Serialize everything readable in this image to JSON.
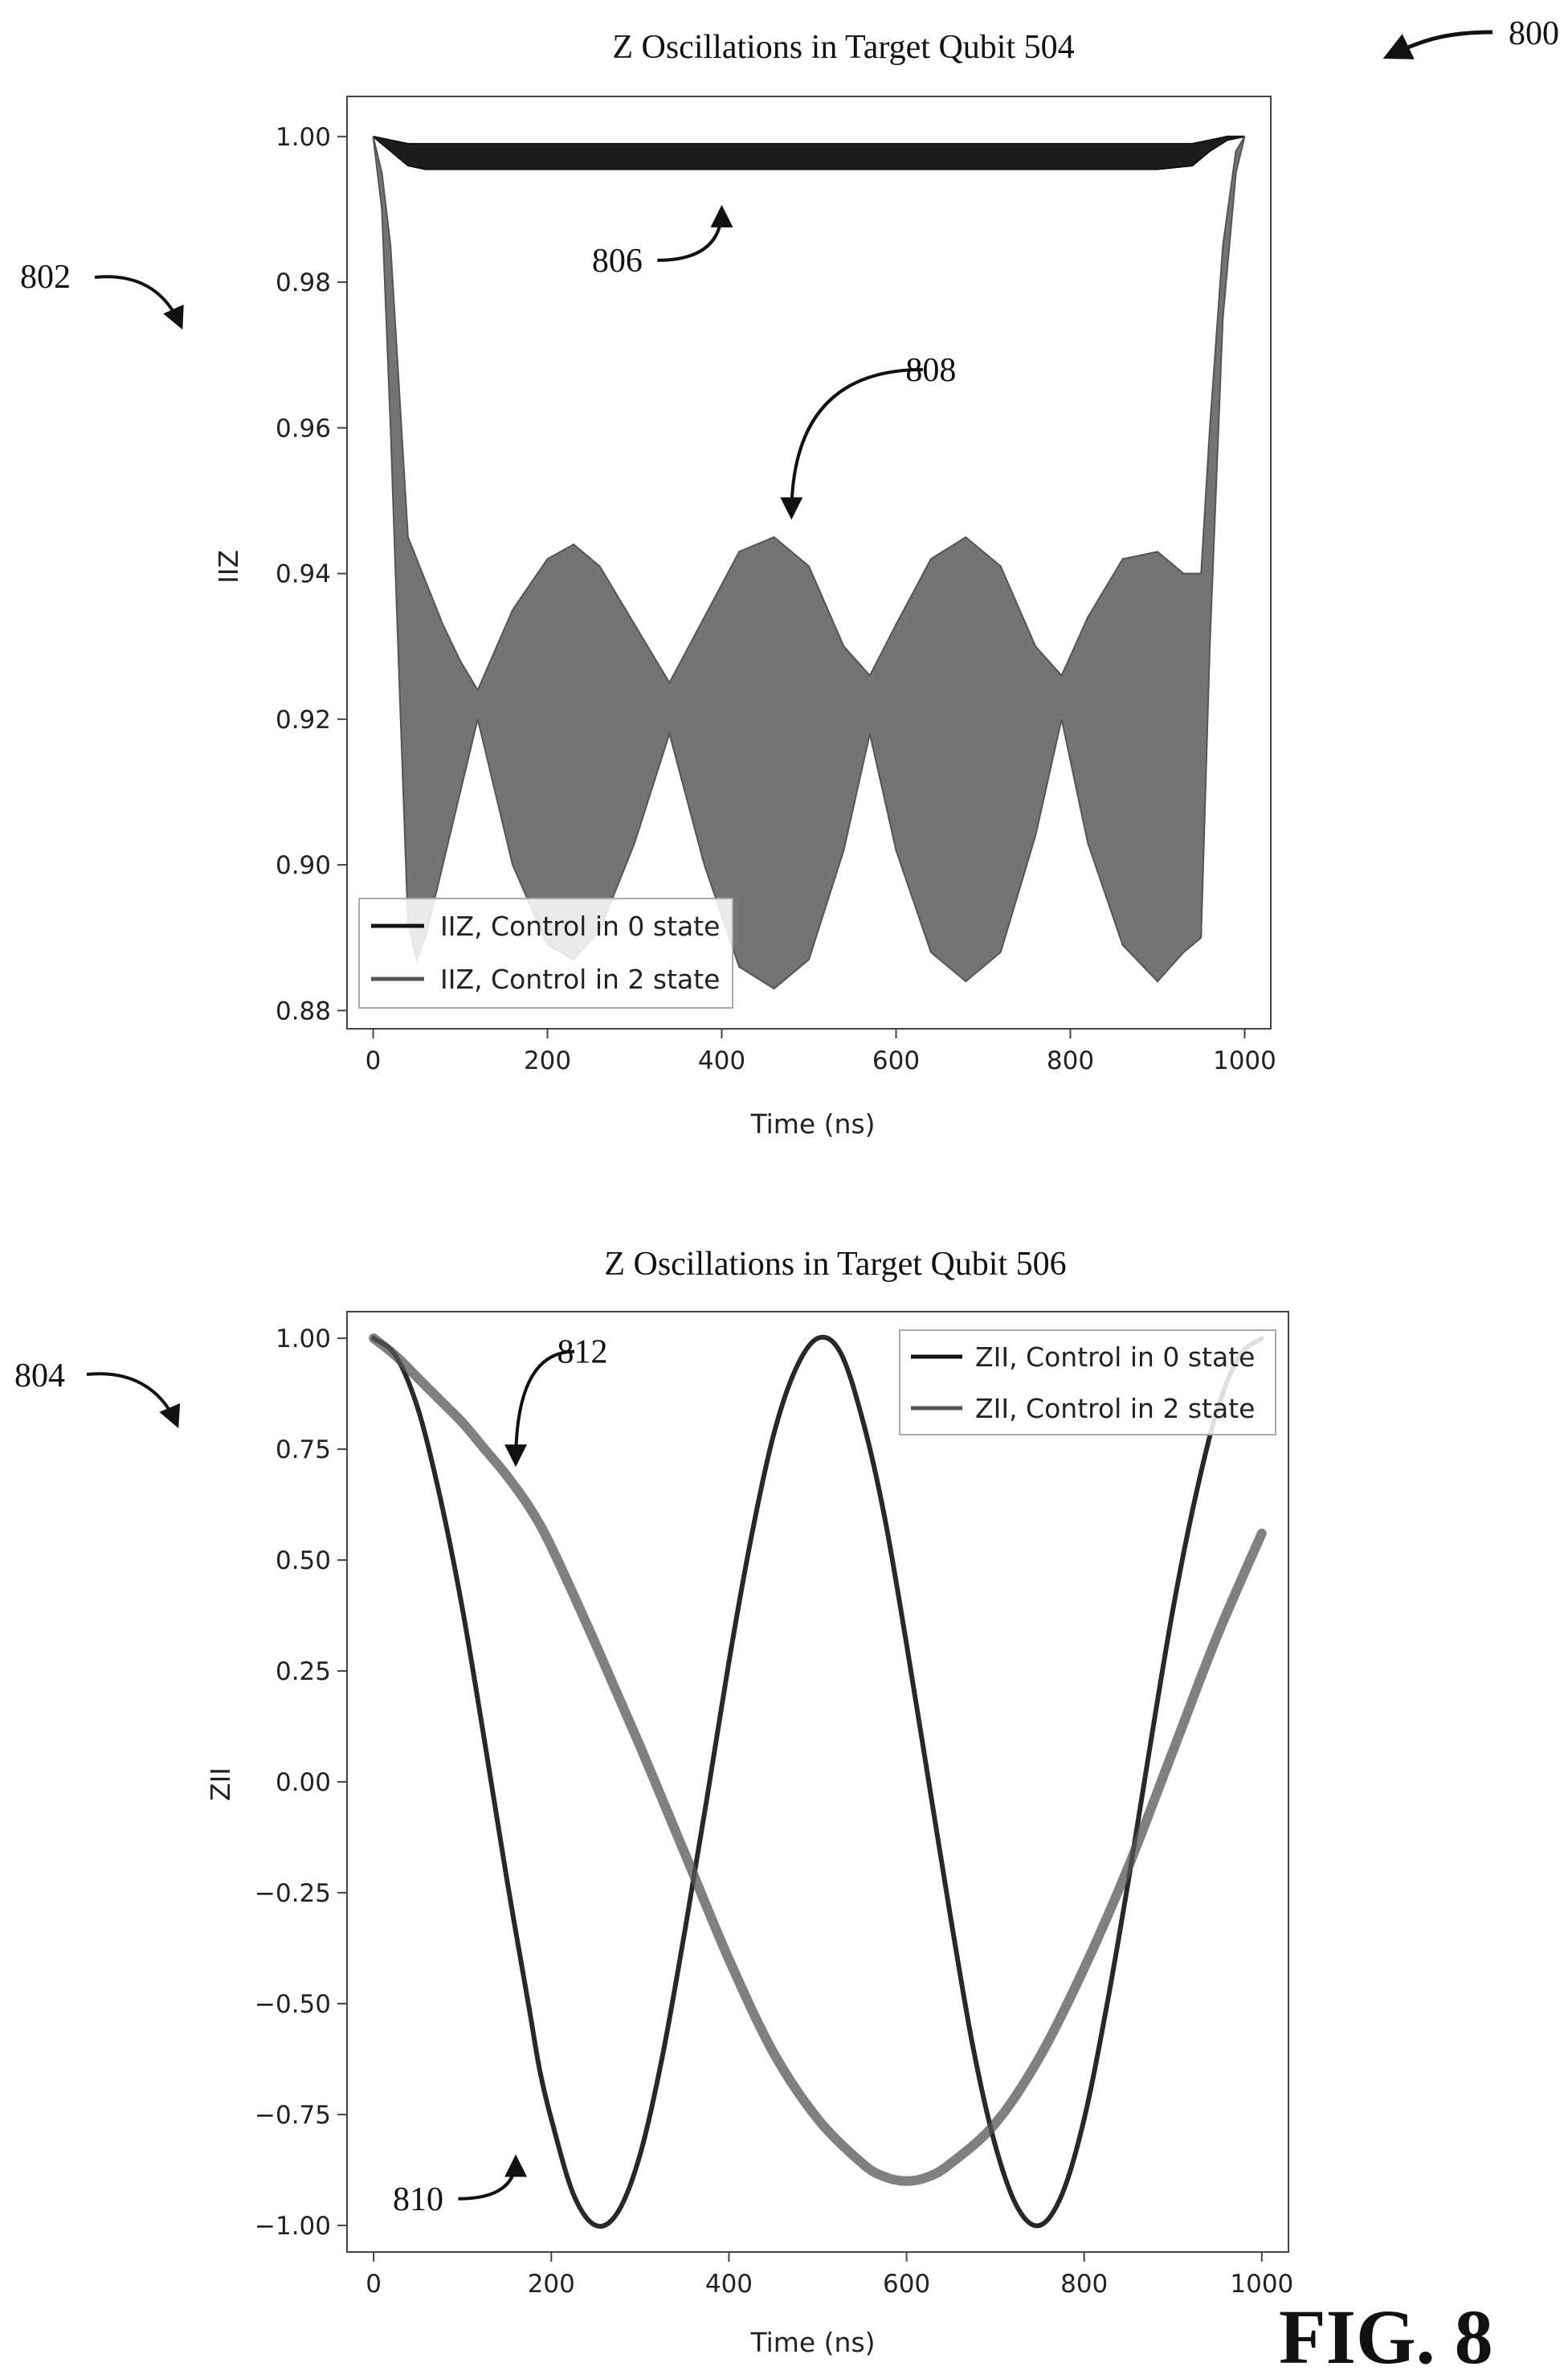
{
  "figure": {
    "ref_main": "800",
    "fig_label": "FIG. 8"
  },
  "chart_data": [
    {
      "type": "line",
      "ref": "802",
      "title": "Z Oscillations in Target Qubit 504",
      "xlabel": "Time (ns)",
      "ylabel": "IIZ",
      "xlim": [
        -30,
        1030
      ],
      "ylim": [
        0.8775,
        1.0055
      ],
      "xticks": [
        0,
        200,
        400,
        600,
        800,
        1000
      ],
      "yticks": [
        1.0,
        0.98,
        0.96,
        0.94,
        0.92,
        0.9,
        0.88
      ],
      "ytick_labels": [
        "1.00",
        "0.98",
        "0.96",
        "0.94",
        "0.92",
        "0.90",
        "0.88"
      ],
      "grid": false,
      "legend_position": "bottom-left",
      "annotations": [
        {
          "label": "806",
          "x": 400,
          "y": 0.99,
          "text_x": 280,
          "text_y": 0.983
        },
        {
          "label": "808",
          "x": 480,
          "y": 0.948,
          "text_x": 640,
          "text_y": 0.968
        }
      ],
      "series": [
        {
          "name": "IIZ, Control in 0 state",
          "color": "#111111",
          "x": [
            0,
            20,
            40,
            60,
            100,
            200,
            300,
            400,
            500,
            600,
            700,
            800,
            900,
            940,
            960,
            980,
            1000
          ],
          "upper": [
            1.0,
            0.9995,
            0.999,
            0.999,
            0.999,
            0.999,
            0.999,
            0.999,
            0.999,
            0.999,
            0.999,
            0.999,
            0.999,
            0.999,
            0.9995,
            1.0,
            1.0
          ],
          "lower": [
            1.0,
            0.998,
            0.996,
            0.9955,
            0.9955,
            0.9955,
            0.9955,
            0.9955,
            0.9955,
            0.9955,
            0.9955,
            0.9955,
            0.9955,
            0.996,
            0.998,
            0.9995,
            1.0
          ]
        },
        {
          "name": "IIZ, Control in 2 state",
          "color": "#555555",
          "x": [
            0,
            10,
            20,
            30,
            40,
            50,
            60,
            80,
            100,
            120,
            160,
            200,
            230,
            260,
            300,
            340,
            380,
            420,
            460,
            500,
            540,
            570,
            600,
            640,
            680,
            720,
            760,
            790,
            820,
            860,
            900,
            930,
            950,
            960,
            975,
            990,
            1000
          ],
          "upper": [
            1.0,
            0.995,
            0.985,
            0.965,
            0.945,
            0.942,
            0.939,
            0.933,
            0.928,
            0.924,
            0.935,
            0.942,
            0.944,
            0.941,
            0.933,
            0.925,
            0.934,
            0.943,
            0.945,
            0.941,
            0.93,
            0.926,
            0.933,
            0.942,
            0.945,
            0.941,
            0.93,
            0.926,
            0.934,
            0.942,
            0.943,
            0.94,
            0.94,
            0.96,
            0.985,
            0.998,
            1.0
          ],
          "lower": [
            1.0,
            0.99,
            0.96,
            0.925,
            0.892,
            0.887,
            0.89,
            0.9,
            0.91,
            0.92,
            0.9,
            0.889,
            0.887,
            0.891,
            0.903,
            0.918,
            0.9,
            0.886,
            0.883,
            0.887,
            0.902,
            0.918,
            0.902,
            0.888,
            0.884,
            0.888,
            0.904,
            0.92,
            0.903,
            0.889,
            0.884,
            0.888,
            0.89,
            0.93,
            0.975,
            0.995,
            1.0
          ]
        }
      ]
    },
    {
      "type": "line",
      "ref": "804",
      "title": "Z Oscillations in Target Qubit 506",
      "xlabel": "Time (ns)",
      "ylabel": "ZII",
      "xlim": [
        -30,
        1030
      ],
      "ylim": [
        -1.06,
        1.06
      ],
      "xticks": [
        0,
        200,
        400,
        600,
        800,
        1000
      ],
      "yticks": [
        1.0,
        0.75,
        0.5,
        0.25,
        0.0,
        -0.25,
        -0.5,
        -0.75,
        -1.0
      ],
      "ytick_labels": [
        "1.00",
        "0.75",
        "0.50",
        "0.25",
        "0.00",
        "−0.25",
        "−0.50",
        "−0.75",
        "−1.00"
      ],
      "grid": false,
      "legend_position": "top-right",
      "annotations": [
        {
          "label": "812",
          "x": 160,
          "y": 0.72,
          "text_x": 235,
          "text_y": 0.97
        },
        {
          "label": "810",
          "x": 160,
          "y": -0.85,
          "text_x": 50,
          "text_y": -0.94
        }
      ],
      "series": [
        {
          "name": "ZII, Control in 0 state",
          "color": "#111111",
          "x": [
            0,
            25,
            50,
            75,
            100,
            125,
            150,
            175,
            187,
            200,
            225,
            250,
            275,
            300,
            325,
            350,
            375,
            400,
            425,
            450,
            475,
            500,
            525,
            550,
            575,
            600,
            625,
            650,
            675,
            700,
            725,
            750,
            775,
            800,
            825,
            850,
            875,
            900,
            925,
            950,
            975,
            1000
          ],
          "y": [
            1.0,
            0.96,
            0.84,
            0.64,
            0.39,
            0.09,
            -0.22,
            -0.51,
            -0.65,
            -0.76,
            -0.93,
            -1.0,
            -0.97,
            -0.84,
            -0.62,
            -0.34,
            -0.04,
            0.27,
            0.55,
            0.78,
            0.93,
            1.0,
            0.97,
            0.82,
            0.6,
            0.31,
            0.0,
            -0.31,
            -0.6,
            -0.82,
            -0.96,
            -1.0,
            -0.93,
            -0.76,
            -0.51,
            -0.22,
            0.09,
            0.39,
            0.64,
            0.84,
            0.96,
            1.0
          ]
        },
        {
          "name": "ZII, Control in 2 state",
          "color": "#555555",
          "x": [
            0,
            25,
            50,
            75,
            100,
            125,
            150,
            175,
            200,
            250,
            300,
            350,
            400,
            450,
            500,
            550,
            575,
            600,
            625,
            650,
            700,
            750,
            800,
            850,
            900,
            950,
            1000
          ],
          "y": [
            1.0,
            0.96,
            0.91,
            0.86,
            0.81,
            0.75,
            0.69,
            0.62,
            0.53,
            0.31,
            0.08,
            -0.16,
            -0.4,
            -0.61,
            -0.76,
            -0.86,
            -0.89,
            -0.9,
            -0.89,
            -0.86,
            -0.77,
            -0.62,
            -0.42,
            -0.19,
            0.07,
            0.33,
            0.56
          ]
        }
      ]
    }
  ]
}
